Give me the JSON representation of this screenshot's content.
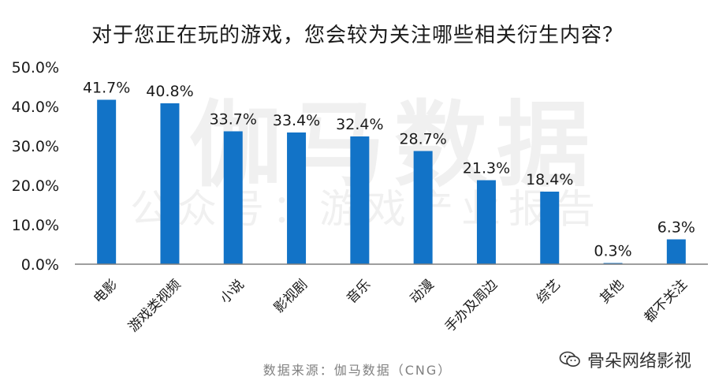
{
  "title": "对于您正在玩的游戏，您会较为关注哪些相关衍生内容？",
  "source": "数据来源：伽马数据（CNG）",
  "watermark_main": "伽马数据",
  "watermark_sub": "公众号：游戏产业报告",
  "wechat_account": "骨朵网络影视",
  "colors": {
    "bar": "#1273c7",
    "axis": "#7f7f7f",
    "text": "#1a1a1a"
  },
  "chart_data": {
    "type": "bar",
    "title": "对于您正在玩的游戏，您会较为关注哪些相关衍生内容？",
    "categories": [
      "电影",
      "游戏类视频",
      "小说",
      "影视剧",
      "音乐",
      "动漫",
      "手办及周边",
      "综艺",
      "其他",
      "都不关注"
    ],
    "values": [
      41.7,
      40.8,
      33.7,
      33.4,
      32.4,
      28.7,
      21.3,
      18.4,
      0.3,
      6.3
    ],
    "value_labels": [
      "41.7%",
      "40.8%",
      "33.7%",
      "33.4%",
      "32.4%",
      "28.7%",
      "21.3%",
      "18.4%",
      "0.3%",
      "6.3%"
    ],
    "yticks": [
      "0.0%",
      "10.0%",
      "20.0%",
      "30.0%",
      "40.0%",
      "50.0%"
    ],
    "ylim": [
      0,
      50
    ],
    "xlabel": "",
    "ylabel": "",
    "grid": false,
    "legend": "none"
  }
}
